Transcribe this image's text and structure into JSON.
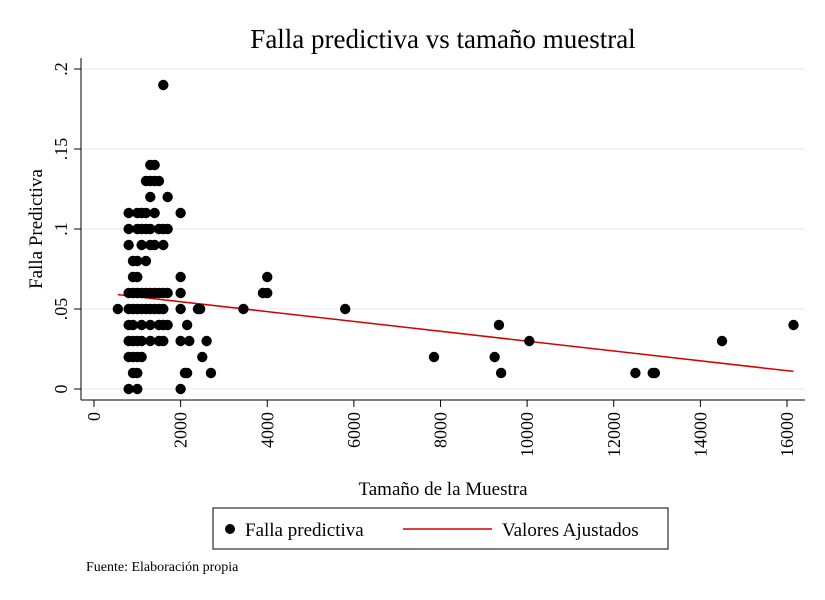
{
  "chart_data": {
    "type": "scatter",
    "title": "Falla predictiva vs tamaño muestral",
    "xlabel": "Tamaño de la Muestra",
    "ylabel": "Falla Predictiva",
    "xlim": [
      0,
      16000
    ],
    "ylim": [
      0,
      0.2
    ],
    "x_ticks": [
      0,
      2000,
      4000,
      6000,
      8000,
      10000,
      12000,
      14000,
      16000
    ],
    "x_tick_labels": [
      "0",
      "2000",
      "4000",
      "6000",
      "8000",
      "10000",
      "12000",
      "14000",
      "16000"
    ],
    "y_ticks": [
      0,
      0.05,
      0.1,
      0.15,
      0.2
    ],
    "y_tick_labels": [
      "0",
      ".05",
      ".1",
      ".15",
      ".2"
    ],
    "grid": true,
    "legend_position": "bottom",
    "series": [
      {
        "name": "Falla predictiva",
        "kind": "scatter",
        "color": "#000000",
        "points": [
          [
            550,
            0.05
          ],
          [
            800,
            0.11
          ],
          [
            800,
            0.1
          ],
          [
            800,
            0.09
          ],
          [
            800,
            0.06
          ],
          [
            800,
            0.05
          ],
          [
            800,
            0.04
          ],
          [
            800,
            0.03
          ],
          [
            800,
            0.02
          ],
          [
            800,
            0.0
          ],
          [
            900,
            0.08
          ],
          [
            900,
            0.07
          ],
          [
            900,
            0.06
          ],
          [
            900,
            0.05
          ],
          [
            900,
            0.04
          ],
          [
            900,
            0.03
          ],
          [
            900,
            0.02
          ],
          [
            900,
            0.01
          ],
          [
            1000,
            0.11
          ],
          [
            1000,
            0.1
          ],
          [
            1000,
            0.08
          ],
          [
            1000,
            0.07
          ],
          [
            1000,
            0.06
          ],
          [
            1000,
            0.05
          ],
          [
            1000,
            0.03
          ],
          [
            1000,
            0.02
          ],
          [
            1000,
            0.01
          ],
          [
            1000,
            0.0
          ],
          [
            1100,
            0.11
          ],
          [
            1100,
            0.1
          ],
          [
            1100,
            0.09
          ],
          [
            1100,
            0.06
          ],
          [
            1100,
            0.05
          ],
          [
            1100,
            0.04
          ],
          [
            1100,
            0.03
          ],
          [
            1100,
            0.02
          ],
          [
            1200,
            0.13
          ],
          [
            1200,
            0.11
          ],
          [
            1200,
            0.1
          ],
          [
            1200,
            0.08
          ],
          [
            1200,
            0.06
          ],
          [
            1200,
            0.05
          ],
          [
            1300,
            0.14
          ],
          [
            1300,
            0.13
          ],
          [
            1300,
            0.12
          ],
          [
            1300,
            0.1
          ],
          [
            1300,
            0.09
          ],
          [
            1300,
            0.06
          ],
          [
            1300,
            0.05
          ],
          [
            1300,
            0.04
          ],
          [
            1300,
            0.03
          ],
          [
            1400,
            0.14
          ],
          [
            1400,
            0.13
          ],
          [
            1400,
            0.11
          ],
          [
            1400,
            0.09
          ],
          [
            1400,
            0.06
          ],
          [
            1400,
            0.05
          ],
          [
            1500,
            0.13
          ],
          [
            1500,
            0.1
          ],
          [
            1500,
            0.06
          ],
          [
            1500,
            0.05
          ],
          [
            1500,
            0.04
          ],
          [
            1500,
            0.03
          ],
          [
            1600,
            0.19
          ],
          [
            1600,
            0.1
          ],
          [
            1600,
            0.09
          ],
          [
            1600,
            0.06
          ],
          [
            1600,
            0.05
          ],
          [
            1600,
            0.04
          ],
          [
            1600,
            0.03
          ],
          [
            1700,
            0.12
          ],
          [
            1700,
            0.1
          ],
          [
            1700,
            0.06
          ],
          [
            1700,
            0.04
          ],
          [
            2000,
            0.11
          ],
          [
            2000,
            0.07
          ],
          [
            2000,
            0.06
          ],
          [
            2000,
            0.05
          ],
          [
            2000,
            0.03
          ],
          [
            2000,
            0.0
          ],
          [
            2100,
            0.01
          ],
          [
            2150,
            0.01
          ],
          [
            2150,
            0.04
          ],
          [
            2200,
            0.03
          ],
          [
            2400,
            0.05
          ],
          [
            2450,
            0.05
          ],
          [
            2500,
            0.02
          ],
          [
            2600,
            0.03
          ],
          [
            2700,
            0.01
          ],
          [
            3450,
            0.05
          ],
          [
            3900,
            0.06
          ],
          [
            4000,
            0.06
          ],
          [
            4000,
            0.07
          ],
          [
            5800,
            0.05
          ],
          [
            7850,
            0.02
          ],
          [
            9250,
            0.02
          ],
          [
            9350,
            0.04
          ],
          [
            9400,
            0.01
          ],
          [
            10050,
            0.03
          ],
          [
            12500,
            0.01
          ],
          [
            12900,
            0.01
          ],
          [
            12950,
            0.01
          ],
          [
            14500,
            0.03
          ],
          [
            16150,
            0.04
          ]
        ]
      },
      {
        "name": "Valores Ajustados",
        "kind": "line",
        "color": "#d40000",
        "x": [
          550,
          16150
        ],
        "y": [
          0.059,
          0.011
        ]
      }
    ],
    "source_note": "Fuente: Elaboración propia"
  }
}
